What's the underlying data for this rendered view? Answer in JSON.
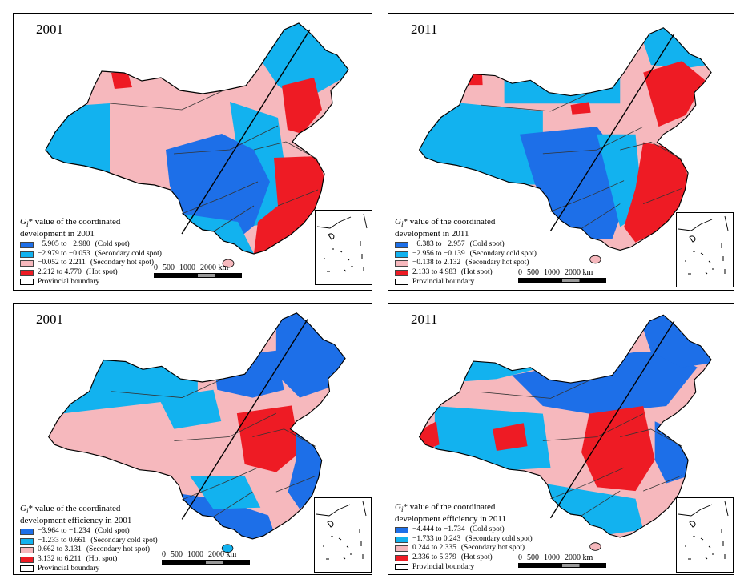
{
  "colors": {
    "cold": "#1d6fe8",
    "secondary_cold": "#12b2ef",
    "secondary_hot": "#f6b8bd",
    "hot": "#ee1b24",
    "boundary": "#000000"
  },
  "scale_bar": {
    "labels": [
      "0",
      "500",
      "1000",
      "2000 km"
    ]
  },
  "panels": [
    {
      "year": "2001",
      "legend": {
        "title_symbol": "G",
        "title_subscript": "i",
        "title_rest": "* value of the coordinated",
        "title_line2": "development in 2001",
        "items": [
          {
            "range": "−5.905 to −2.980",
            "class": "(Cold spot)",
            "color": "cold"
          },
          {
            "range": "−2.979 to −0.053",
            "class": "(Secondary cold spot)",
            "color": "secondary_cold"
          },
          {
            "range": "−0.052 to 2.211",
            "class": "(Secondary hot spot)",
            "color": "secondary_hot"
          },
          {
            "range": "2.212 to 4.770",
            "class": "(Hot spot)",
            "color": "hot"
          }
        ],
        "boundary_label": "Provincial boundary"
      }
    },
    {
      "year": "2011",
      "legend": {
        "title_symbol": "G",
        "title_subscript": "i",
        "title_rest": "* value of the coordinated",
        "title_line2": "development in 2011",
        "items": [
          {
            "range": "−6.383 to −2.957",
            "class": "(Cold spot)",
            "color": "cold"
          },
          {
            "range": "−2.956 to −0.139",
            "class": "(Secondary cold spot)",
            "color": "secondary_cold"
          },
          {
            "range": "−0.138 to 2.132",
            "class": "(Secondary hot spot)",
            "color": "secondary_hot"
          },
          {
            "range": "2.133 to 4.983",
            "class": "(Hot spot)",
            "color": "hot"
          }
        ],
        "boundary_label": "Provincial boundary"
      }
    },
    {
      "year": "2001",
      "legend": {
        "title_symbol": "G",
        "title_subscript": "i",
        "title_rest": "* value of the coordinated",
        "title_line2": "development efficiency in 2001",
        "items": [
          {
            "range": "−3.964 to −1.234",
            "class": "(Cold spot)",
            "color": "cold"
          },
          {
            "range": "−1.233 to 0.661",
            "class": "(Secondary cold spot)",
            "color": "secondary_cold"
          },
          {
            "range": "0.662 to 3.131",
            "class": "(Secondary hot spot)",
            "color": "secondary_hot"
          },
          {
            "range": "3.132 to 6.211",
            "class": "(Hot spot)",
            "color": "hot"
          }
        ],
        "boundary_label": "Provincial boundary"
      }
    },
    {
      "year": "2011",
      "legend": {
        "title_symbol": "G",
        "title_subscript": "i",
        "title_rest": "* value of the coordinated",
        "title_line2": "development efficiency in 2011",
        "items": [
          {
            "range": "−4.444 to −1.734",
            "class": "(Cold spot)",
            "color": "cold"
          },
          {
            "range": "−1.733 to 0.243",
            "class": "(Secondary cold spot)",
            "color": "secondary_cold"
          },
          {
            "range": "0.244 to 2.335",
            "class": "(Secondary hot spot)",
            "color": "secondary_hot"
          },
          {
            "range": "2.336 to 5.379",
            "class": "(Hot spot)",
            "color": "hot"
          }
        ],
        "boundary_label": "Provincial boundary"
      }
    }
  ]
}
